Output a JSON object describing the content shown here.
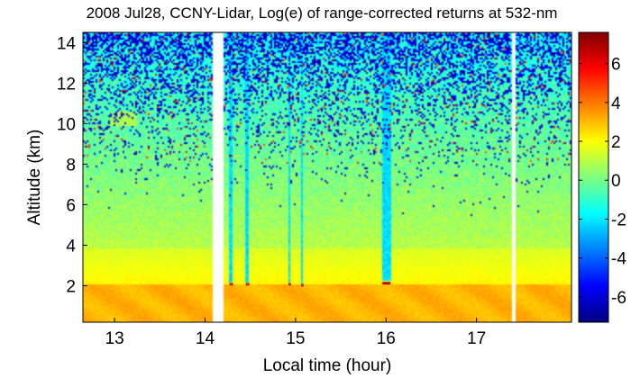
{
  "chart_data": {
    "type": "heatmap",
    "title": "2008 Jul28, CCNY-Lidar, Log(e) of range-corrected returns at 532-nm",
    "xlabel": "Local time (hour)",
    "ylabel": "Altitude (km)",
    "xlim": [
      12.65,
      18.05
    ],
    "ylim": [
      0.2,
      14.5
    ],
    "xticks": [
      13,
      14,
      15,
      16,
      17
    ],
    "yticks": [
      2,
      4,
      6,
      8,
      10,
      12,
      14
    ],
    "colorbar": {
      "range": [
        -7.3,
        7.6
      ],
      "ticks": [
        6,
        4,
        2,
        0,
        -2,
        -4,
        -6
      ],
      "colormap": "jet"
    },
    "data_gaps_hours": [
      [
        14.08,
        14.2
      ],
      [
        17.4,
        17.43
      ]
    ],
    "boundary_layer_top_km": 3.8,
    "cloud_events": [
      {
        "start_hour": 14.28,
        "end_hour": 14.3,
        "base_km": 2.05,
        "intensity": 3
      },
      {
        "start_hour": 14.46,
        "end_hour": 14.48,
        "base_km": 2.05,
        "intensity": 3
      },
      {
        "start_hour": 14.93,
        "end_hour": 14.94,
        "base_km": 2.05,
        "intensity": 2
      },
      {
        "start_hour": 15.07,
        "end_hour": 15.08,
        "base_km": 2.0,
        "intensity": 2
      },
      {
        "start_hour": 15.97,
        "end_hour": 16.04,
        "base_km": 2.1,
        "intensity": 5
      }
    ],
    "elevated_layer": {
      "start_hour": 12.95,
      "end_hour": 13.25,
      "altitude_km": 10.2
    }
  },
  "colors": {
    "colormap_stops": [
      "#00008f",
      "#0000ff",
      "#00ffff",
      "#ffff00",
      "#ff0000",
      "#800000"
    ]
  }
}
